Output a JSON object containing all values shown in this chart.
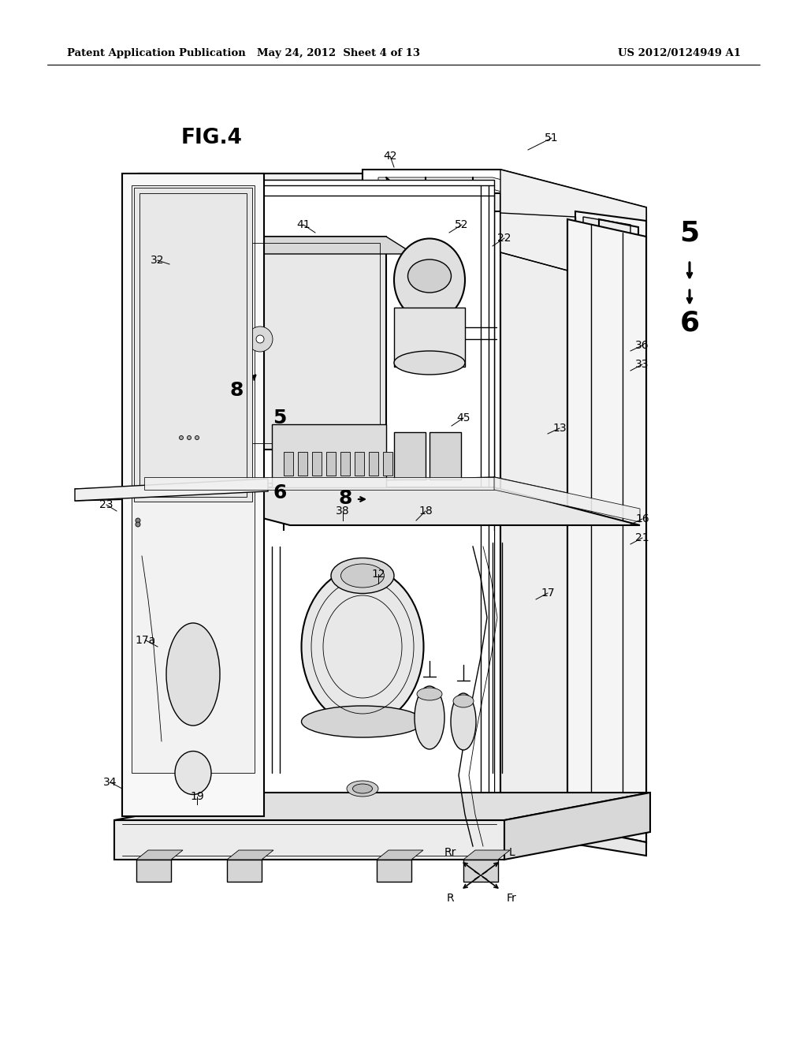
{
  "bg_color": "#ffffff",
  "header_left": "Patent Application Publication",
  "header_mid": "May 24, 2012  Sheet 4 of 13",
  "header_right": "US 2012/0124949 A1",
  "fig_label": "FIG.4",
  "lw_main": 1.5,
  "lw_med": 1.0,
  "lw_thin": 0.6,
  "label_fontsize": 10,
  "header_fontsize": 9.5
}
